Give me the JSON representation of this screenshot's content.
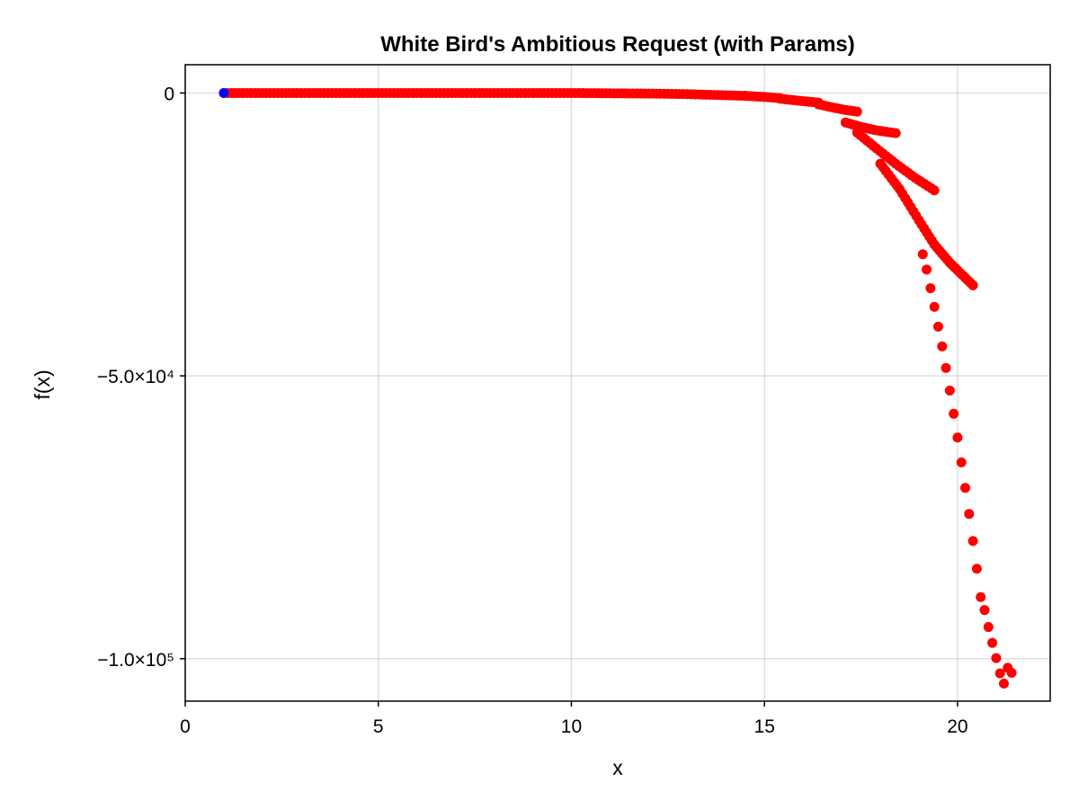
{
  "chart_data": {
    "type": "scatter",
    "title": "White Bird's Ambitious Request (with Params)",
    "xlabel": "x",
    "ylabel": "f(x)",
    "xlim": [
      0,
      22.4
    ],
    "ylim": [
      -107500,
      5000
    ],
    "grid": true,
    "x_ticks": [
      {
        "value": 0,
        "label": "0"
      },
      {
        "value": 5,
        "label": "5"
      },
      {
        "value": 10,
        "label": "10"
      },
      {
        "value": 15,
        "label": "15"
      },
      {
        "value": 20,
        "label": "20"
      }
    ],
    "y_ticks": [
      {
        "value": 0,
        "label": "0"
      },
      {
        "value": -50000,
        "label": "−5.0×10⁴"
      },
      {
        "value": -100000,
        "label": "−1.0×10⁵"
      }
    ],
    "colors": {
      "blue_series": "#0000ff",
      "red_series": "#ff0000"
    },
    "series": [
      {
        "color": "#0000ff",
        "points": [
          [
            1.0,
            0
          ]
        ]
      },
      {
        "color": "#ff0000",
        "description_of_points": "dense curves read off the plot",
        "flat_curve": [
          [
            1.1,
            0
          ],
          [
            2,
            0
          ],
          [
            3,
            0
          ],
          [
            4,
            0
          ],
          [
            5,
            0
          ],
          [
            6,
            0
          ],
          [
            7,
            0
          ],
          [
            8,
            0
          ],
          [
            9,
            0
          ],
          [
            10,
            0
          ],
          [
            11,
            -50
          ],
          [
            12,
            -100
          ],
          [
            13,
            -200
          ],
          [
            14,
            -400
          ],
          [
            14.5,
            -500
          ]
        ],
        "branch_15": [
          [
            14.5,
            -500
          ],
          [
            15.0,
            -700
          ],
          [
            15.4,
            -900
          ]
        ],
        "branch_16": [
          [
            15.4,
            -1000
          ],
          [
            15.8,
            -1300
          ],
          [
            16.1,
            -1500
          ],
          [
            16.4,
            -1700
          ]
        ],
        "branch_17": [
          [
            16.4,
            -2000
          ],
          [
            16.8,
            -2600
          ],
          [
            17.1,
            -3000
          ],
          [
            17.4,
            -3300
          ]
        ],
        "branch_18": [
          [
            17.1,
            -5200
          ],
          [
            17.5,
            -6000
          ],
          [
            17.9,
            -6600
          ],
          [
            18.4,
            -7100
          ]
        ],
        "branch_19": [
          [
            17.4,
            -7000
          ],
          [
            17.9,
            -9800
          ],
          [
            18.4,
            -12500
          ],
          [
            18.9,
            -15000
          ],
          [
            19.4,
            -17200
          ]
        ],
        "branch_20": [
          [
            18.0,
            -12500
          ],
          [
            18.5,
            -17000
          ],
          [
            19.0,
            -22500
          ],
          [
            19.4,
            -26800
          ],
          [
            19.8,
            -30000
          ],
          [
            20.4,
            -34000
          ]
        ],
        "isolated_points": [
          [
            19.1,
            -28500
          ],
          [
            19.2,
            -31200
          ],
          [
            19.3,
            -34500
          ],
          [
            19.4,
            -37800
          ],
          [
            19.5,
            -41300
          ],
          [
            19.6,
            -44800
          ],
          [
            19.7,
            -48600
          ],
          [
            19.8,
            -52600
          ],
          [
            19.9,
            -56700
          ],
          [
            20.0,
            -60900
          ],
          [
            20.1,
            -65300
          ],
          [
            20.2,
            -69800
          ],
          [
            20.3,
            -74400
          ],
          [
            20.4,
            -79200
          ],
          [
            20.5,
            -84100
          ],
          [
            20.6,
            -89100
          ],
          [
            20.7,
            -91400
          ],
          [
            20.8,
            -94400
          ],
          [
            20.9,
            -97200
          ],
          [
            21.0,
            -99900
          ],
          [
            21.1,
            -102600
          ],
          [
            21.2,
            -104400
          ],
          [
            21.3,
            -101600
          ],
          [
            21.4,
            -102500
          ]
        ]
      }
    ]
  }
}
